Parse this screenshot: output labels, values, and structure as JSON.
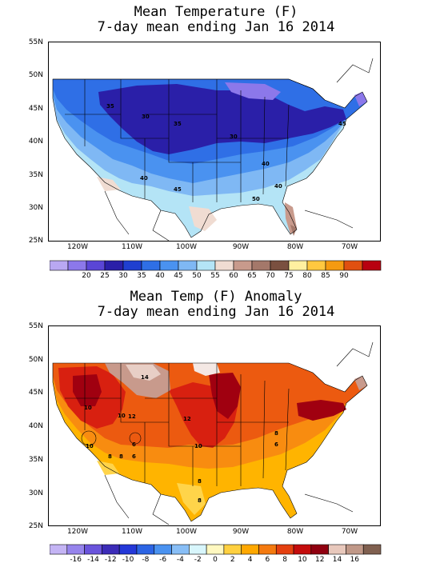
{
  "temperature": {
    "title_line1": "Mean Temperature (F)",
    "title_line2": "7-day mean ending Jan 16 2014",
    "lat_labels": [
      "55N",
      "50N",
      "45N",
      "40N",
      "35N",
      "30N",
      "25N"
    ],
    "lon_labels": [
      "120W",
      "110W",
      "100W",
      "90W",
      "80W",
      "70W"
    ],
    "colorbar_labels": [
      "20",
      "25",
      "30",
      "35",
      "40",
      "45",
      "50",
      "55",
      "60",
      "65",
      "70",
      "75",
      "80",
      "85",
      "90"
    ],
    "colorbar_colors": [
      "#b9a8f2",
      "#8c78ea",
      "#5a46d6",
      "#2a1fa8",
      "#1f3fd0",
      "#2f6fe6",
      "#4a92f0",
      "#7fb8f4",
      "#b4e4f6",
      "#f0dcd2",
      "#c89a8c",
      "#a4786a",
      "#7a5040",
      "#fff0a0",
      "#ffc840",
      "#f59a10",
      "#e05010",
      "#b80010"
    ],
    "contour_labels": [
      "35",
      "30",
      "35",
      "30",
      "40",
      "40",
      "45",
      "40",
      "45",
      "50"
    ],
    "map_colors": {
      "deep_cold": "#2a1fa8",
      "cold": "#2f6fe6",
      "mid_blue": "#4a92f0",
      "light_blue": "#7fb8f4",
      "pale_blue": "#b4e4f6",
      "tan": "#f0dcd2",
      "brown": "#c89a8c",
      "dark_brown": "#a4786a",
      "lavender": "#8c78ea"
    }
  },
  "anomaly": {
    "title_line1": "Mean Temp (F) Anomaly",
    "title_line2": "7-day mean ending Jan 16 2014",
    "lat_labels": [
      "55N",
      "50N",
      "45N",
      "40N",
      "35N",
      "30N",
      "25N"
    ],
    "lon_labels": [
      "120W",
      "110W",
      "100W",
      "90W",
      "80W",
      "70W"
    ],
    "colorbar_labels": [
      "-16",
      "-14",
      "-12",
      "-10",
      "-8",
      "-6",
      "-4",
      "-2",
      "0",
      "2",
      "4",
      "6",
      "8",
      "10",
      "12",
      "14",
      "16"
    ],
    "colorbar_colors": [
      "#c4b4f4",
      "#9684ec",
      "#6a54dc",
      "#3c2cb8",
      "#2438d8",
      "#2c64e4",
      "#4a92f0",
      "#88bef6",
      "#d8f6fc",
      "#fff8c0",
      "#ffd040",
      "#ffa800",
      "#f47a10",
      "#e44010",
      "#c40c0c",
      "#900010",
      "#e8c8bc",
      "#c09888",
      "#806050"
    ],
    "contour_labels": [
      "14",
      "10",
      "10",
      "12",
      "12",
      "10",
      "10",
      "8",
      "6",
      "6",
      "8",
      "8",
      "8",
      "8",
      "6"
    ],
    "map_colors": {
      "dark_red": "#a00010",
      "red": "#d82010",
      "orange_red": "#ec5a10",
      "orange": "#f88c10",
      "gold": "#ffb400",
      "yellow": "#ffd44a",
      "brown": "#c89a8c",
      "light_brown": "#e8cfc6",
      "pale": "#f4e8e4"
    }
  }
}
